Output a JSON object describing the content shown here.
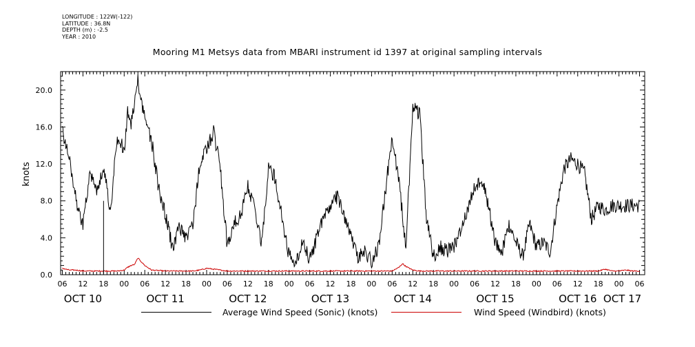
{
  "meta": [
    "LONGITUDE : 122W(-122)",
    "LATITUDE : 36.8N",
    "DEPTH (m) : -2.5",
    "YEAR : 2010"
  ],
  "colors": {
    "series1": "#000000",
    "series2": "#cc0000",
    "axis": "#000000"
  },
  "chart_data": {
    "type": "line",
    "title": "Mooring M1 Metsys data from MBARI instrument id 1397 at original sampling intervals",
    "ylabel": "knots",
    "xlabel": "",
    "ylim": [
      0,
      22
    ],
    "y_ticks": [
      "0.0",
      "4.0",
      "8.0",
      "12.0",
      "16.0",
      "20.0"
    ],
    "y_tick_values": [
      0,
      4,
      8,
      12,
      16,
      20
    ],
    "x_unit": "hours since 06:00 Oct 10 2010",
    "xlim": [
      -0.5,
      169.5
    ],
    "hour_ticks": [
      "06",
      "12",
      "18",
      "00",
      "06",
      "12",
      "18",
      "00",
      "06",
      "12",
      "18",
      "00",
      "06",
      "12",
      "18",
      "00",
      "06",
      "12",
      "18",
      "00",
      "06",
      "12",
      "18",
      "00",
      "06",
      "12",
      "18",
      "00",
      "06"
    ],
    "day_labels": [
      {
        "label": "OCT 10",
        "hour": 6
      },
      {
        "label": "OCT 11",
        "hour": 30
      },
      {
        "label": "OCT 12",
        "hour": 54
      },
      {
        "label": "OCT 13",
        "hour": 78
      },
      {
        "label": "OCT 14",
        "hour": 102
      },
      {
        "label": "OCT 15",
        "hour": 126
      },
      {
        "label": "OCT 16",
        "hour": 150
      },
      {
        "label": "OCT 17",
        "hour": 163
      }
    ],
    "grid": false,
    "legend": "bottom",
    "series": [
      {
        "name": "Average Wind Speed (Sonic) (knots)",
        "x": [
          0,
          2,
          4,
          6,
          8,
          10,
          12,
          14,
          16,
          18,
          19,
          20,
          22,
          24,
          26,
          28,
          30,
          32,
          34,
          36,
          38,
          40,
          42,
          44,
          46,
          48,
          50,
          52,
          54,
          56,
          58,
          60,
          62,
          64,
          66,
          68,
          70,
          72,
          74,
          76,
          78,
          80,
          82,
          84,
          86,
          88,
          90,
          92,
          94,
          96,
          98,
          100,
          102,
          104,
          106,
          108,
          110,
          112,
          114,
          116,
          118,
          120,
          122,
          124,
          126,
          128,
          130,
          132,
          134,
          136,
          138,
          140,
          142,
          144,
          146,
          148,
          150,
          152,
          154,
          156,
          158,
          160,
          162,
          164,
          166,
          168
        ],
        "values": [
          15.5,
          12.5,
          8.0,
          5.5,
          11.0,
          9.0,
          11.5,
          7.0,
          15.0,
          13.5,
          17.5,
          16.5,
          21.0,
          17.0,
          14.5,
          9.5,
          6.5,
          3.0,
          5.0,
          4.0,
          5.5,
          12.0,
          13.5,
          15.5,
          11.5,
          3.0,
          5.5,
          6.5,
          9.5,
          7.0,
          3.5,
          11.5,
          10.5,
          6.0,
          2.0,
          1.5,
          3.5,
          1.5,
          4.0,
          6.0,
          7.5,
          8.5,
          6.5,
          4.0,
          2.0,
          2.5,
          1.5,
          3.0,
          9.0,
          15.0,
          10.0,
          3.0,
          18.0,
          17.5,
          6.0,
          2.0,
          3.0,
          2.5,
          3.0,
          5.0,
          7.0,
          9.5,
          10.5,
          7.5,
          3.5,
          2.5,
          5.5,
          3.5,
          2.0,
          5.5,
          3.0,
          3.5,
          2.5,
          7.5,
          11.5,
          12.5,
          12.0,
          11.0,
          6.0,
          7.5,
          7.0,
          7.5,
          7.5,
          7.5,
          7.5,
          7.5
        ]
      },
      {
        "name": "Wind Speed (Windbird) (knots)",
        "x": [
          0,
          2,
          4,
          6,
          8,
          10,
          12,
          14,
          16,
          18,
          19,
          20,
          21,
          22,
          24,
          26,
          30,
          34,
          38,
          40,
          42,
          44,
          46,
          48,
          52,
          60,
          70,
          80,
          90,
          96,
          98,
          99,
          100,
          102,
          104,
          106,
          110,
          120,
          130,
          140,
          150,
          152,
          154,
          156,
          158,
          160,
          162,
          164,
          166,
          168
        ],
        "values": [
          0.7,
          0.5,
          0.5,
          0.4,
          0.4,
          0.4,
          0.4,
          0.4,
          0.4,
          0.5,
          0.8,
          1.0,
          1.1,
          1.8,
          1.0,
          0.5,
          0.4,
          0.4,
          0.4,
          0.5,
          0.7,
          0.6,
          0.5,
          0.4,
          0.4,
          0.4,
          0.4,
          0.4,
          0.4,
          0.4,
          0.8,
          1.2,
          0.9,
          0.5,
          0.4,
          0.4,
          0.4,
          0.4,
          0.4,
          0.4,
          0.4,
          0.4,
          0.4,
          0.4,
          0.6,
          0.4,
          0.4,
          0.5,
          0.4,
          0.4
        ]
      }
    ]
  }
}
